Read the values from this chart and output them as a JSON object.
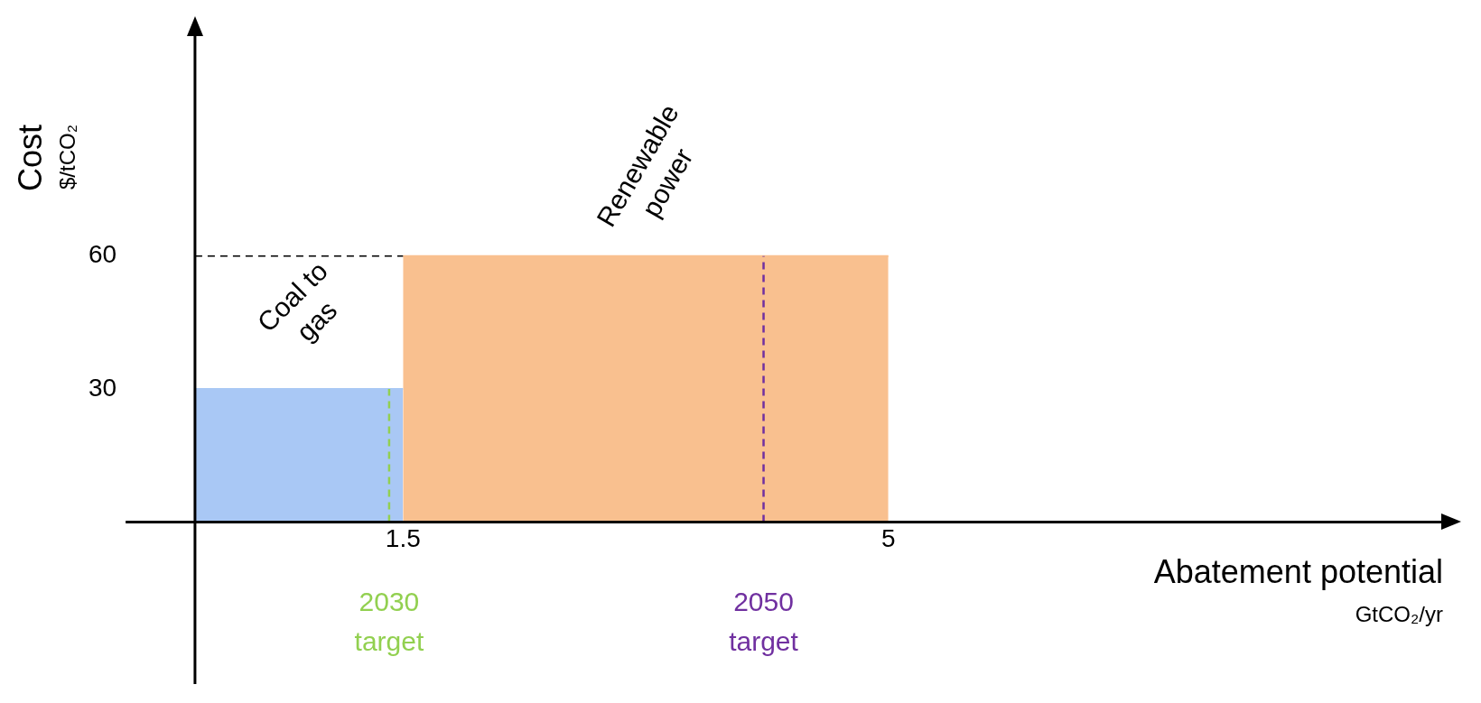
{
  "chart_data": {
    "type": "area",
    "xlabel": "Abatement potential\nGtCO₂/yr",
    "ylabel": "Cost\n$/tCO₂",
    "series": [
      {
        "name": "Coal to gas",
        "color": "#a9c8f5",
        "x": [
          0,
          1.5
        ],
        "values": [
          30,
          30
        ]
      },
      {
        "name": "Renewable power",
        "color": "#f9c08f",
        "x": [
          1.5,
          5
        ],
        "values": [
          60,
          60
        ]
      }
    ],
    "xlim": [
      -0.5,
      9
    ],
    "xticks": [
      1.5,
      5
    ],
    "ylim": [
      0,
      110
    ],
    "yticks": [
      30,
      60
    ],
    "grid": false,
    "legend": false,
    "ref_lines": [
      {
        "axis": "y",
        "value": 60,
        "label": null,
        "color": "#000000",
        "line_style": "dashed"
      },
      {
        "axis": "x",
        "value": 1.4,
        "label": "2030 target",
        "color": "#92d050",
        "line_style": "dashed"
      },
      {
        "axis": "x",
        "value": 4.1,
        "label": "2050 target",
        "color": "#7030a0",
        "line_style": "dashed"
      }
    ]
  }
}
